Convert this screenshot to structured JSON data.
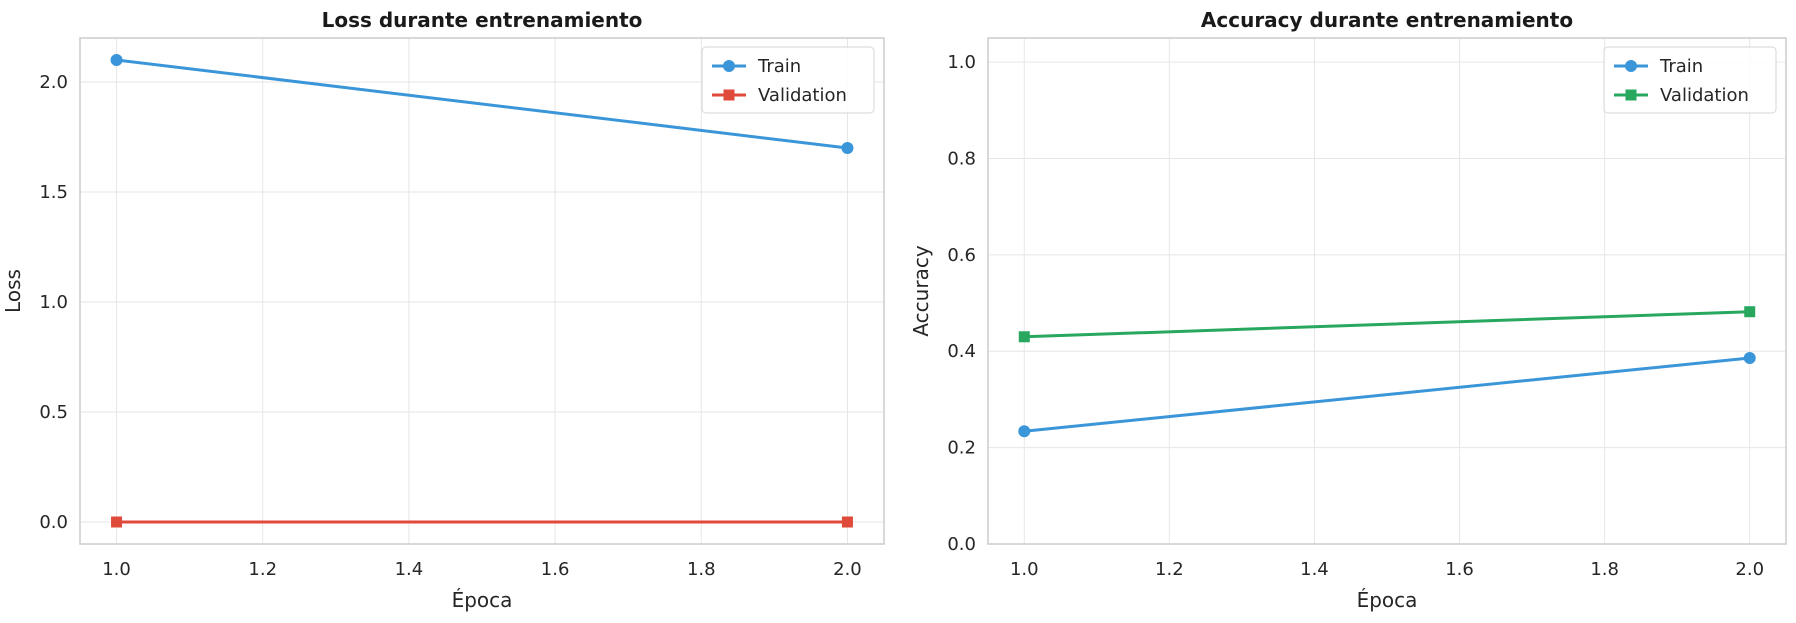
{
  "chart_data": [
    {
      "type": "line",
      "title": "Loss durante entrenamiento",
      "xlabel": "Época",
      "ylabel": "Loss",
      "xlim": [
        0.95,
        2.05
      ],
      "ylim": [
        -0.1,
        2.2
      ],
      "xticks": [
        "1.0",
        "1.2",
        "1.4",
        "1.6",
        "1.8",
        "2.0"
      ],
      "yticks": [
        "0.0",
        "0.5",
        "1.0",
        "1.5",
        "2.0"
      ],
      "grid": true,
      "legend_position": "top-right",
      "x": [
        1.0,
        2.0
      ],
      "series": [
        {
          "name": "Train",
          "values": [
            2.1,
            1.7
          ],
          "color": "#3a96d9",
          "marker": "circle"
        },
        {
          "name": "Validation",
          "values": [
            0.0,
            0.0
          ],
          "color": "#e04a3a",
          "marker": "square"
        }
      ]
    },
    {
      "type": "line",
      "title": "Accuracy durante entrenamiento",
      "xlabel": "Época",
      "ylabel": "Accuracy",
      "xlim": [
        0.95,
        2.05
      ],
      "ylim": [
        0.0,
        1.05
      ],
      "xticks": [
        "1.0",
        "1.2",
        "1.4",
        "1.6",
        "1.8",
        "2.0"
      ],
      "yticks": [
        "0.0",
        "0.2",
        "0.4",
        "0.6",
        "0.8",
        "1.0"
      ],
      "grid": true,
      "legend_position": "top-right",
      "x": [
        1.0,
        2.0
      ],
      "series": [
        {
          "name": "Train",
          "values": [
            0.234,
            0.386
          ],
          "color": "#3a96d9",
          "marker": "circle"
        },
        {
          "name": "Validation",
          "values": [
            0.43,
            0.482
          ],
          "color": "#27a85e",
          "marker": "square"
        }
      ]
    }
  ]
}
